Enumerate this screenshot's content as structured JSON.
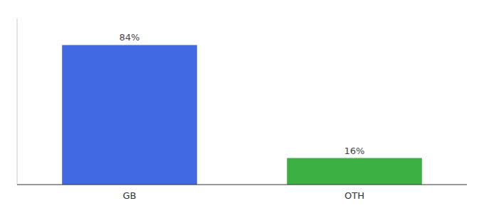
{
  "chart_data": {
    "type": "bar",
    "categories": [
      "GB",
      "OTH"
    ],
    "values": [
      84,
      16
    ],
    "value_labels": [
      "84%",
      "16%"
    ],
    "colors": [
      "#4169E1",
      "#3CB043"
    ],
    "ylim": [
      0,
      100
    ],
    "data_labels": true,
    "tick_labels": "x",
    "grid": false
  }
}
